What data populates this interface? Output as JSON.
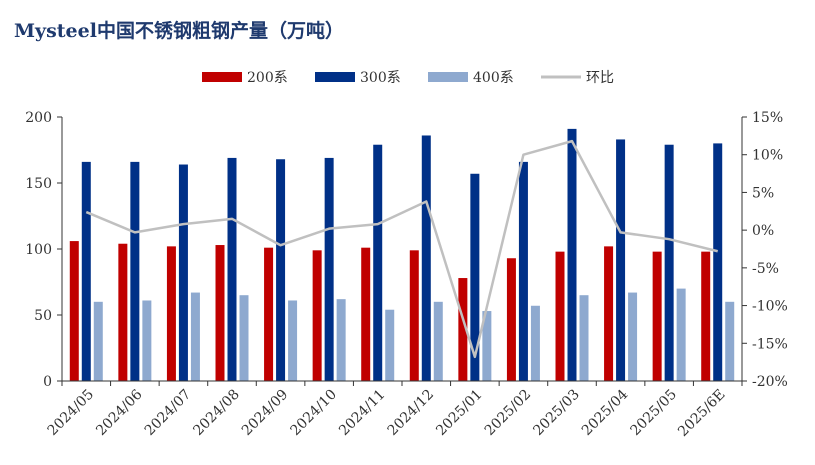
{
  "chart_data": {
    "type": "bar",
    "title": "Mysteel中国不锈钢粗钢产量（万吨）",
    "categories": [
      "2024/05",
      "2024/06",
      "2024/07",
      "2024/08",
      "2024/09",
      "2024/10",
      "2024/11",
      "2024/12",
      "2025/01",
      "2025/02",
      "2025/03",
      "2025/04",
      "2025/05",
      "2025/6E"
    ],
    "series": [
      {
        "name": "200系",
        "type": "bar",
        "axis": "left",
        "color": "#c00000",
        "values": [
          106,
          104,
          102,
          103,
          101,
          99,
          101,
          99,
          78,
          93,
          98,
          102,
          98,
          98
        ]
      },
      {
        "name": "300系",
        "type": "bar",
        "axis": "left",
        "color": "#003087",
        "values": [
          166,
          166,
          164,
          169,
          168,
          169,
          179,
          186,
          157,
          166,
          191,
          183,
          179,
          180
        ]
      },
      {
        "name": "400系",
        "type": "bar",
        "axis": "left",
        "color": "#8ea9cf",
        "values": [
          60,
          61,
          67,
          65,
          61,
          62,
          54,
          60,
          53,
          57,
          65,
          67,
          70,
          60
        ]
      },
      {
        "name": "环比",
        "type": "line",
        "axis": "right",
        "color": "#c0c0c0",
        "values": [
          2.4,
          -0.3,
          0.8,
          1.5,
          -2.0,
          0.2,
          0.8,
          3.8,
          -16.8,
          10.0,
          11.8,
          -0.3,
          -1.2,
          -2.8
        ]
      }
    ],
    "y_left": {
      "min": 0,
      "max": 200,
      "ticks": [
        0,
        50,
        100,
        150,
        200
      ]
    },
    "y_right": {
      "min": -20,
      "max": 15,
      "ticks": [
        -20,
        -15,
        -10,
        -5,
        0,
        5,
        10,
        15
      ],
      "tick_labels": [
        "-20%",
        "-15%",
        "-10%",
        "-5%",
        "0%",
        "5%",
        "10%",
        "15%"
      ]
    },
    "grid": false,
    "legend_position": "top-center"
  }
}
